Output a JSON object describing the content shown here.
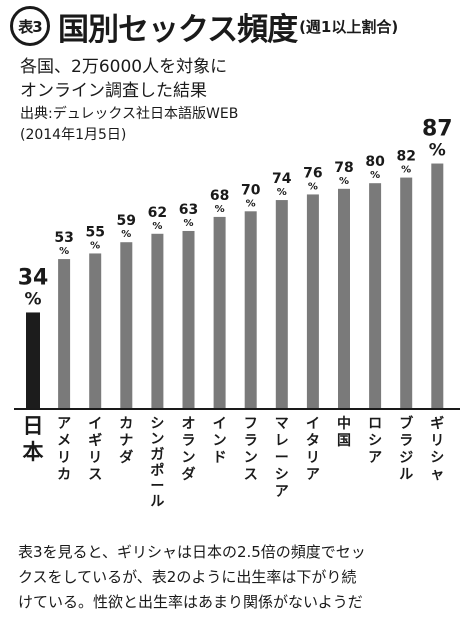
{
  "header": {
    "badge": "表3",
    "title": "国別セックス頻度",
    "title_suffix": "(週1以上割合)",
    "subtitle_line1": "各国、2万6000人を対象に",
    "subtitle_line2": "オンライン調査した結果",
    "source_line1": "出典:デュレックス社日本語版WEB",
    "source_line2": "(2014年1月5日)"
  },
  "chart_data": {
    "type": "bar",
    "categories": [
      "日本",
      "アメリカ",
      "イギリス",
      "カナダ",
      "シンガポール",
      "オランダ",
      "インド",
      "フランス",
      "マレーシア",
      "イタリア",
      "中国",
      "ロシア",
      "ブラジル",
      "ギリシャ"
    ],
    "values": [
      34,
      53,
      55,
      59,
      62,
      63,
      68,
      70,
      74,
      76,
      78,
      80,
      82,
      87
    ],
    "unit": "%",
    "highlight_category": "日本",
    "colors": {
      "highlight": "#1c1c1c",
      "bar": "#7a7a7a",
      "baseline": "#1a1a1a"
    }
  },
  "footnote": {
    "line1": "表3を見ると、ギリシャは日本の2.5倍の頻度でセッ",
    "line2": "クスをしているが、表2のように出生率は下がり続",
    "line3": "けている。性欲と出生率はあまり関係がないようだ"
  }
}
